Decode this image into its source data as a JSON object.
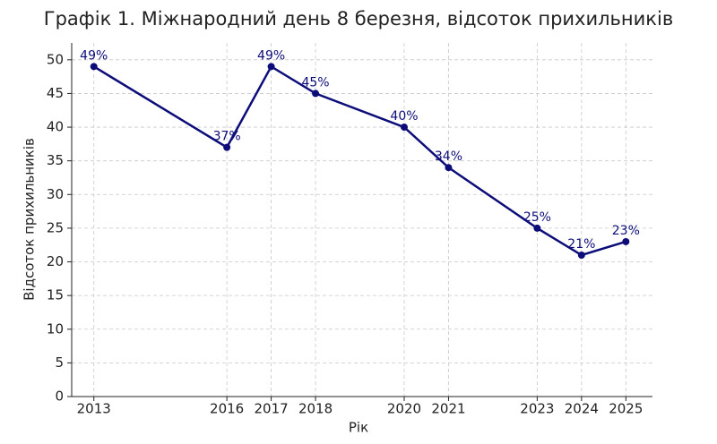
{
  "chart_data": {
    "type": "line",
    "title": "Графік 1. Міжнародний день 8 березня, відсоток прихильників",
    "x_label": "Рік",
    "y_label": "Відсоток прихильників",
    "x": [
      2013,
      2016,
      2017,
      2018,
      2020,
      2021,
      2023,
      2024,
      2025
    ],
    "series": [
      {
        "name": "Відсоток прихильників",
        "color": "#0d0d7a",
        "values": [
          49,
          37,
          49,
          45,
          40,
          34,
          25,
          21,
          23
        ],
        "value_labels": [
          "49%",
          "37%",
          "49%",
          "45%",
          "40%",
          "34%",
          "25%",
          "21%",
          "23%"
        ]
      }
    ],
    "xlim": [
      2012.5,
      2025.6
    ],
    "ylim": [
      0,
      52.5
    ],
    "xticks": [
      2013,
      2016,
      2017,
      2018,
      2020,
      2021,
      2023,
      2024,
      2025
    ],
    "yticks": [
      0,
      5,
      10,
      15,
      20,
      25,
      30,
      35,
      40,
      45,
      50
    ],
    "grid": true
  }
}
